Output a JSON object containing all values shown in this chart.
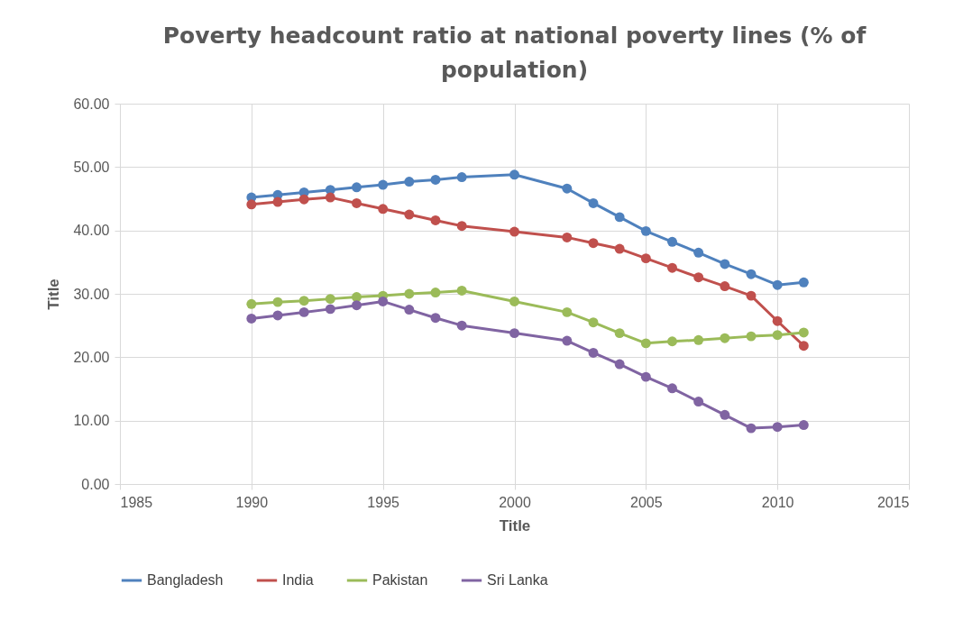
{
  "chart_data": {
    "type": "line",
    "title": "Poverty headcount ratio at national poverty lines (% of population)",
    "xlabel": "Title",
    "ylabel": "Title",
    "x": [
      1990,
      1991,
      1992,
      1993,
      1994,
      1995,
      1996,
      1997,
      1998,
      2000,
      2002,
      2003,
      2004,
      2005,
      2006,
      2007,
      2008,
      2009,
      2010,
      2011
    ],
    "series": [
      {
        "name": "Bangladesh",
        "color": "#4f81bd",
        "values": [
          45.2,
          45.6,
          46.0,
          46.4,
          46.8,
          47.2,
          47.7,
          48.0,
          48.4,
          48.8,
          46.6,
          44.3,
          42.1,
          39.9,
          38.2,
          36.5,
          34.7,
          33.1,
          31.4,
          31.8
        ]
      },
      {
        "name": "India",
        "color": "#c0504d",
        "values": [
          44.1,
          44.5,
          44.9,
          45.2,
          44.3,
          43.4,
          42.5,
          41.6,
          40.7,
          39.8,
          38.9,
          38.0,
          37.1,
          35.6,
          34.1,
          32.6,
          31.2,
          29.7,
          25.7,
          21.8
        ]
      },
      {
        "name": "Pakistan",
        "color": "#9bbb59",
        "values": [
          28.4,
          28.7,
          28.9,
          29.2,
          29.5,
          29.7,
          30.0,
          30.2,
          30.5,
          28.8,
          27.1,
          25.5,
          23.8,
          22.2,
          22.5,
          22.7,
          23.0,
          23.3,
          23.5,
          23.9
        ]
      },
      {
        "name": "Sri Lanka",
        "color": "#8064a2",
        "values": [
          26.1,
          26.6,
          27.1,
          27.6,
          28.2,
          28.8,
          27.5,
          26.2,
          25.0,
          23.8,
          22.6,
          20.7,
          18.9,
          16.9,
          15.1,
          13.0,
          10.9,
          8.8,
          9.0,
          9.3
        ]
      }
    ],
    "xlim": [
      1985,
      2015
    ],
    "xticks": [
      1985,
      1990,
      1995,
      2000,
      2005,
      2010,
      2015
    ],
    "ylim": [
      0,
      60
    ],
    "yticks": [
      {
        "value": 0,
        "label": "0.00"
      },
      {
        "value": 10,
        "label": "10.00"
      },
      {
        "value": 20,
        "label": "20.00"
      },
      {
        "value": 30,
        "label": "30.00"
      },
      {
        "value": 40,
        "label": "40.00"
      },
      {
        "value": 50,
        "label": "50.00"
      },
      {
        "value": 60,
        "label": "60.00"
      }
    ],
    "grid": true,
    "legend": "bottom",
    "marker": "circle",
    "line_style": "solid"
  }
}
